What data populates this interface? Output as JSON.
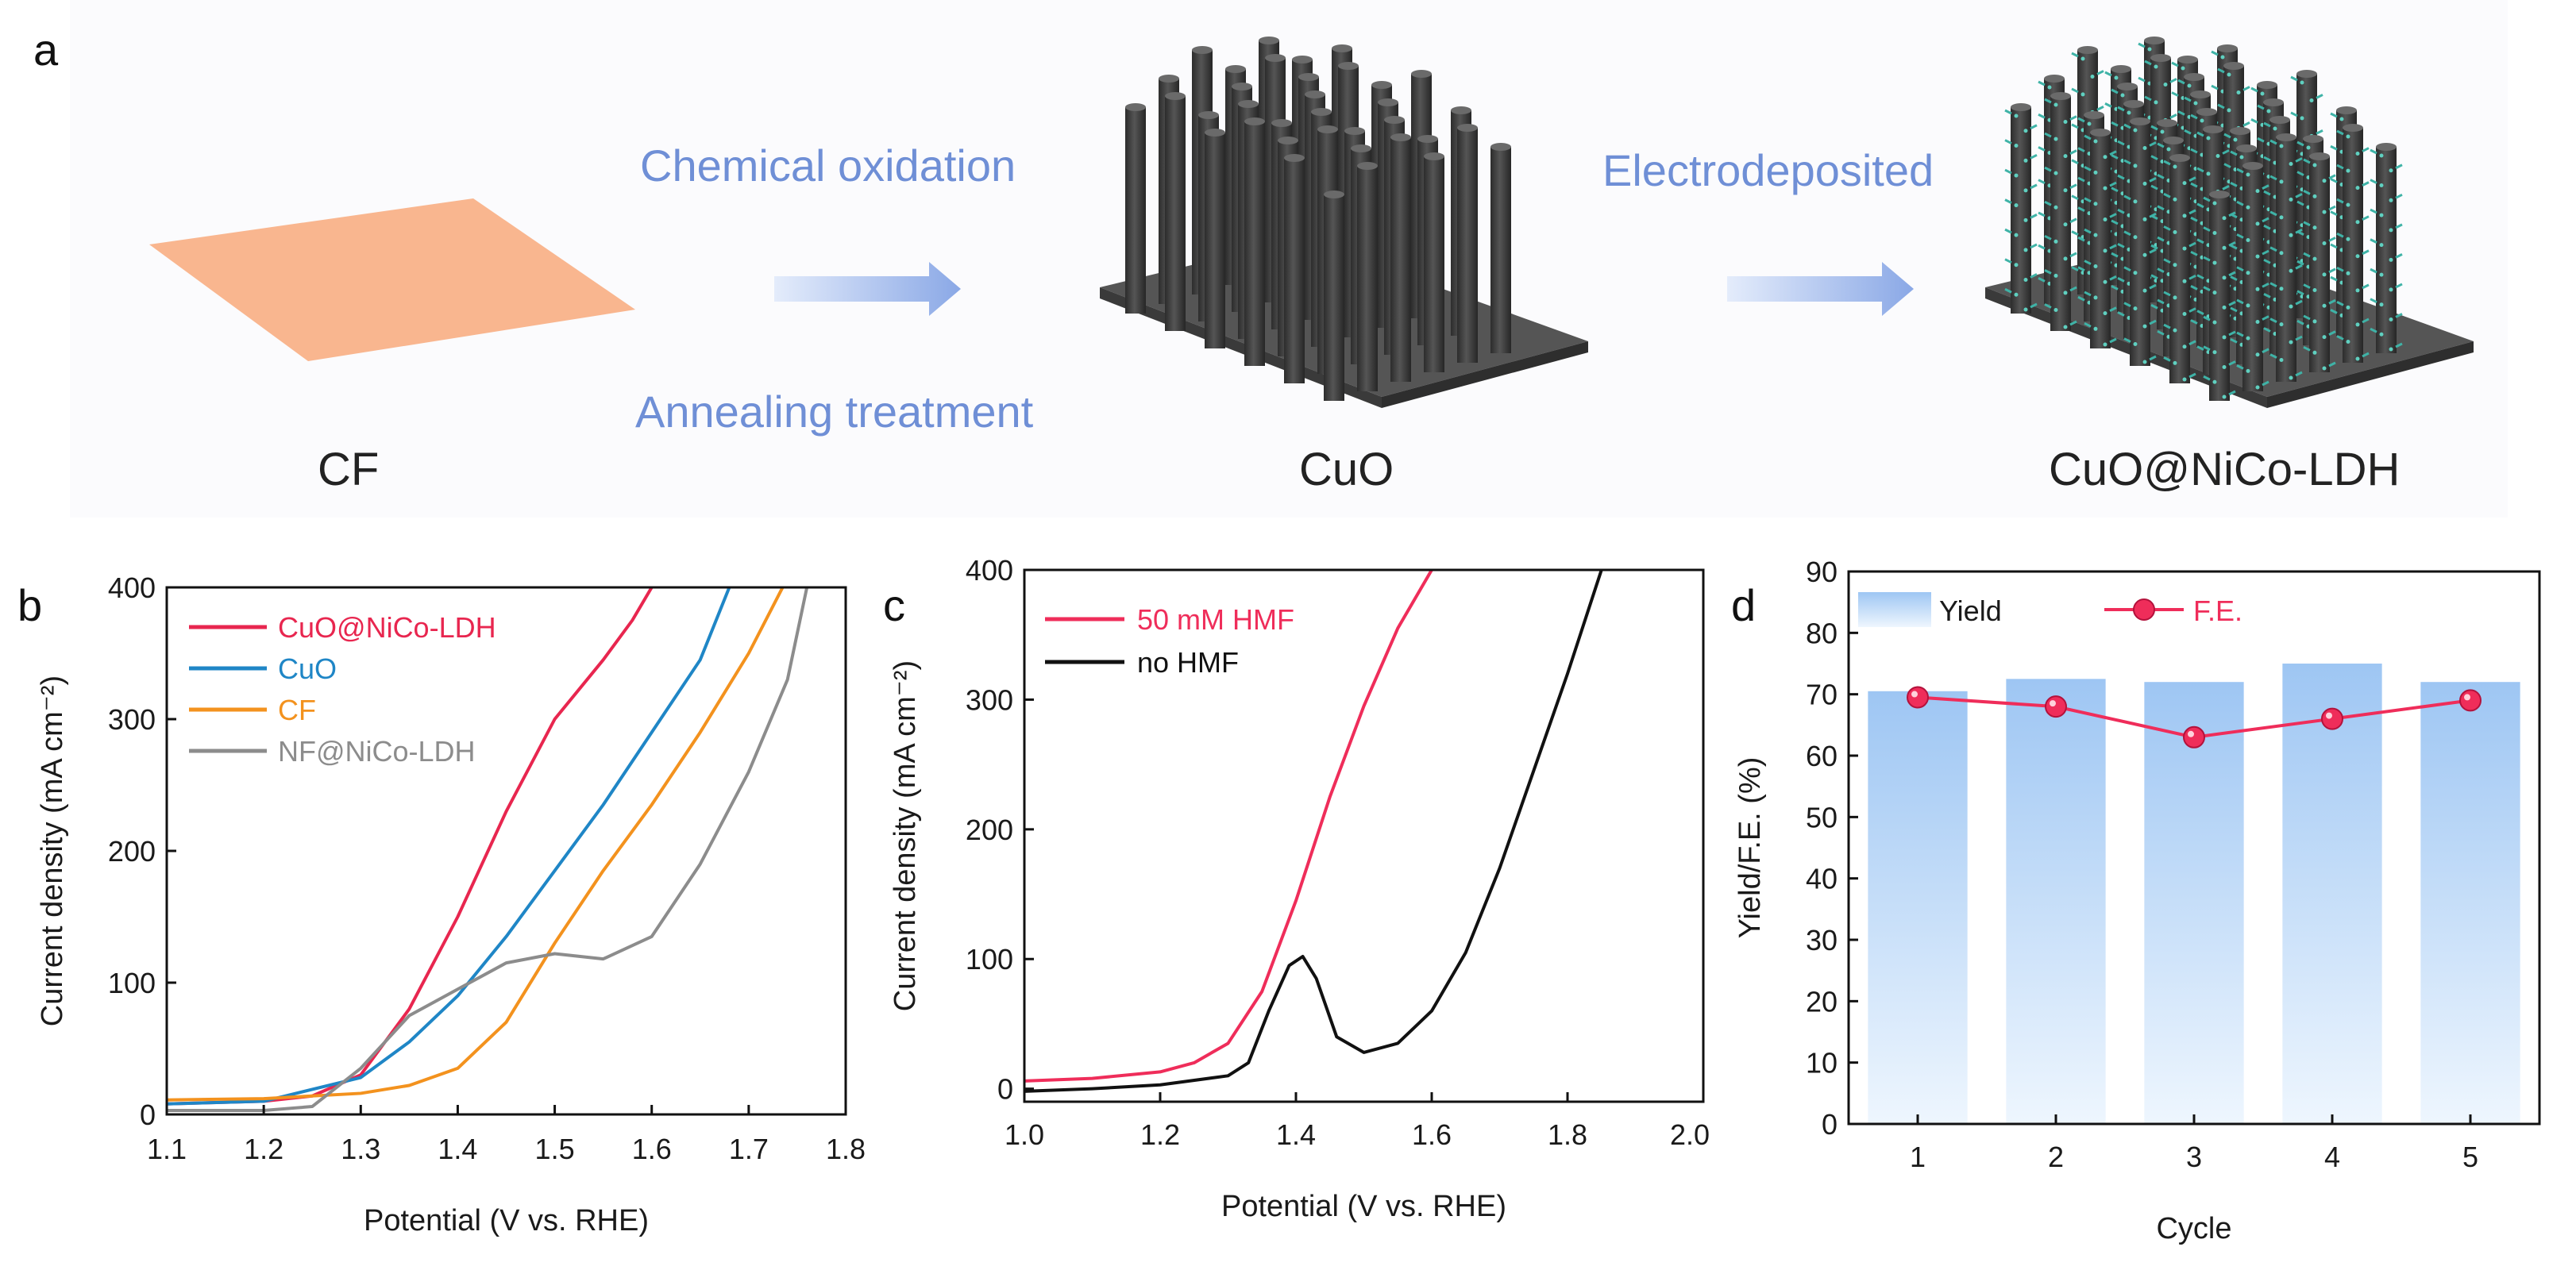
{
  "panel_a": {
    "letter": "a",
    "step1_top": "Chemical oxidation",
    "step1_bottom": "Annealing treatment",
    "step2": "Electrodeposited",
    "labels": [
      "CF",
      "CuO",
      "CuO@NiCo-LDH"
    ],
    "colors": {
      "cf": "#f9b68f",
      "pillar": "#3c3c3c",
      "base": "#555555",
      "ldh": "#3fb3a7",
      "arrow": "#8aa8e6",
      "step_text": "#6f8fd6"
    }
  },
  "chart_data": [
    {
      "panel": "b",
      "type": "line",
      "xlabel": "Potential (V vs. RHE)",
      "ylabel": "Current density (mA cm⁻²)",
      "xlim": [
        1.1,
        1.8
      ],
      "ylim": [
        0,
        400
      ],
      "xticks": [
        1.1,
        1.2,
        1.3,
        1.4,
        1.5,
        1.6,
        1.7,
        1.8
      ],
      "yticks": [
        0,
        100,
        200,
        300,
        400
      ],
      "legend_position": "top-left",
      "series": [
        {
          "name": "CuO@NiCo-LDH",
          "color": "#e8264f",
          "x": [
            1.1,
            1.2,
            1.25,
            1.3,
            1.35,
            1.4,
            1.45,
            1.5,
            1.55,
            1.58,
            1.6
          ],
          "y": [
            8,
            10,
            14,
            30,
            80,
            150,
            230,
            300,
            345,
            375,
            400
          ]
        },
        {
          "name": "CuO",
          "color": "#1f86c6",
          "x": [
            1.1,
            1.2,
            1.3,
            1.35,
            1.4,
            1.45,
            1.5,
            1.55,
            1.6,
            1.65,
            1.68
          ],
          "y": [
            8,
            10,
            28,
            55,
            90,
            135,
            185,
            235,
            290,
            345,
            400
          ]
        },
        {
          "name": "CF",
          "color": "#f3921e",
          "x": [
            1.1,
            1.2,
            1.3,
            1.35,
            1.4,
            1.45,
            1.5,
            1.55,
            1.6,
            1.65,
            1.7,
            1.735
          ],
          "y": [
            11,
            12,
            16,
            22,
            35,
            70,
            130,
            185,
            235,
            290,
            350,
            400
          ]
        },
        {
          "name": "NF@NiCo-LDH",
          "color": "#8c8c8c",
          "x": [
            1.1,
            1.2,
            1.25,
            1.3,
            1.35,
            1.4,
            1.45,
            1.5,
            1.55,
            1.6,
            1.65,
            1.7,
            1.74,
            1.76
          ],
          "y": [
            3,
            3,
            6,
            35,
            75,
            95,
            115,
            122,
            118,
            135,
            190,
            260,
            330,
            400
          ]
        }
      ]
    },
    {
      "panel": "c",
      "type": "line",
      "xlabel": "Potential (V vs. RHE)",
      "ylabel": "Current density (mA cm⁻²)",
      "xlim": [
        1.0,
        2.0
      ],
      "ylim": [
        0,
        400
      ],
      "xticks": [
        1.0,
        1.2,
        1.4,
        1.6,
        1.8,
        2.0
      ],
      "xtick_labels": [
        "1.0",
        "1.2",
        "1.4",
        "1.6",
        "1.8",
        "2.0"
      ],
      "yticks": [
        0,
        100,
        200,
        300,
        400
      ],
      "legend_position": "top-left",
      "series": [
        {
          "name": "50 mM HMF",
          "color": "#ef2d5a",
          "x": [
            1.0,
            1.1,
            1.2,
            1.25,
            1.3,
            1.35,
            1.4,
            1.45,
            1.5,
            1.55,
            1.6
          ],
          "y": [
            6,
            8,
            13,
            20,
            35,
            75,
            145,
            225,
            295,
            355,
            400
          ]
        },
        {
          "name": "no HMF",
          "color": "#111111",
          "x": [
            1.0,
            1.1,
            1.2,
            1.3,
            1.33,
            1.36,
            1.39,
            1.41,
            1.43,
            1.46,
            1.5,
            1.55,
            1.6,
            1.65,
            1.7,
            1.75,
            1.8,
            1.85
          ],
          "y": [
            -2,
            0,
            3,
            10,
            20,
            60,
            95,
            102,
            85,
            40,
            28,
            35,
            60,
            105,
            170,
            245,
            320,
            400
          ]
        }
      ]
    },
    {
      "panel": "d",
      "type": "bar",
      "xlabel": "Cycle",
      "ylabel": "Yield/F.E. (%)",
      "ylim": [
        0,
        90
      ],
      "yticks": [
        0,
        10,
        20,
        30,
        40,
        50,
        60,
        70,
        80,
        90
      ],
      "categories": [
        "1",
        "2",
        "3",
        "4",
        "5"
      ],
      "legend_position": "top",
      "series": [
        {
          "name": "Yield",
          "kind": "bar",
          "color": "#9ec6f3",
          "values": [
            70.5,
            72.5,
            72,
            75,
            72
          ]
        },
        {
          "name": "F.E.",
          "kind": "line-marker",
          "color": "#ef2d5a",
          "values": [
            69.5,
            68,
            63,
            66,
            69
          ]
        }
      ]
    }
  ]
}
